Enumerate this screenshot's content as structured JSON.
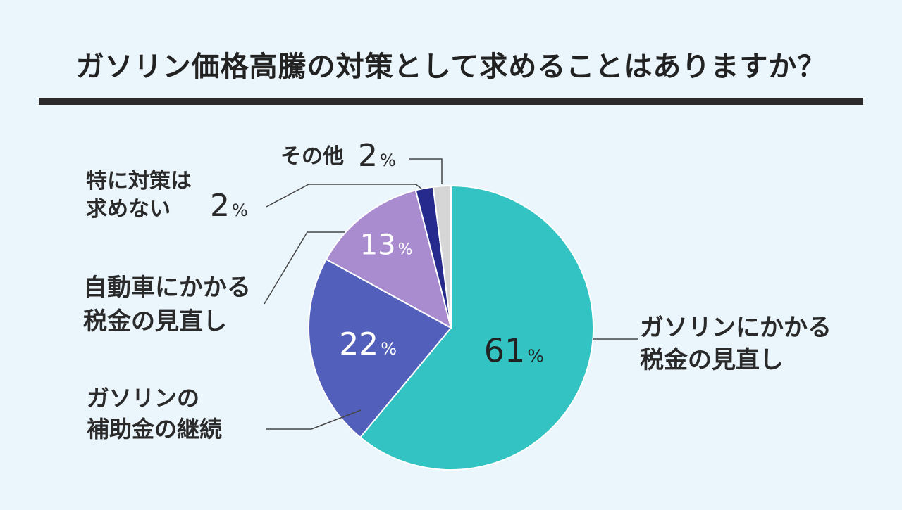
{
  "title": "ガソリン価格高騰の対策として求めることはありますか？",
  "chart_data": {
    "type": "pie",
    "title": "ガソリン価格高騰の対策として求めることはありますか？",
    "unit": "%",
    "slices": [
      {
        "name": "ガソリンにかかる税金の見直し",
        "label_lines": [
          "ガソリンにかかる",
          "税金の見直し"
        ],
        "value": 61,
        "value_label": "61",
        "color": "#33c3c3"
      },
      {
        "name": "ガソリンの補助金の継続",
        "label_lines": [
          "ガソリンの",
          "補助金の継続"
        ],
        "value": 22,
        "value_label": "22",
        "color": "#525fbb"
      },
      {
        "name": "自動車にかかる税金の見直し",
        "label_lines": [
          "自動車にかかる",
          "税金の見直し"
        ],
        "value": 13,
        "value_label": "13",
        "color": "#a98bcf"
      },
      {
        "name": "特に対策は求めない",
        "label_lines": [
          "特に対策は",
          "求めない"
        ],
        "value": 2,
        "value_label": "2",
        "color": "#262a8c"
      },
      {
        "name": "その他",
        "label_lines": [
          "その他"
        ],
        "value": 2,
        "value_label": "2",
        "color": "#d6d6d6"
      }
    ]
  }
}
